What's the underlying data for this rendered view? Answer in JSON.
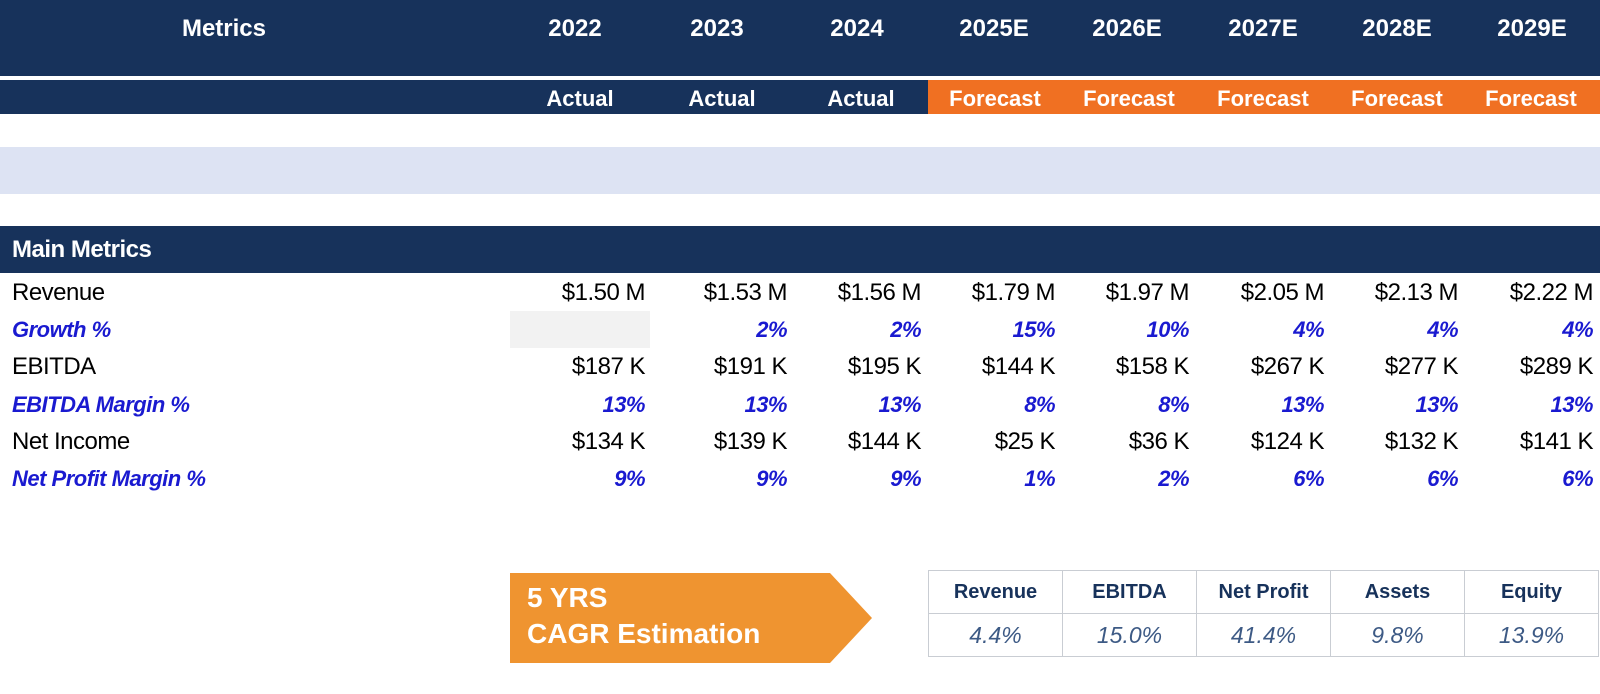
{
  "header": {
    "metrics_label": "Metrics",
    "years": [
      "2022",
      "2023",
      "2024",
      "2025E",
      "2026E",
      "2027E",
      "2028E",
      "2029E"
    ],
    "types": [
      "Actual",
      "Actual",
      "Actual",
      "Forecast",
      "Forecast",
      "Forecast",
      "Forecast",
      "Forecast"
    ]
  },
  "colors": {
    "navy": "#17325b",
    "forecast": "#f07022",
    "band": "#dde3f3",
    "percent_text": "#1a1ad0",
    "cagr_arrow": "#ef9430"
  },
  "section": {
    "title": "Main Metrics"
  },
  "rows": {
    "revenue": {
      "label": "Revenue",
      "values": [
        "$1.50 M",
        "$1.53 M",
        "$1.56 M",
        "$1.79 M",
        "$1.97 M",
        "$2.05 M",
        "$2.13 M",
        "$2.22 M"
      ]
    },
    "growth": {
      "label": "Growth %",
      "values": [
        "",
        "2%",
        "2%",
        "15%",
        "10%",
        "4%",
        "4%",
        "4%"
      ]
    },
    "ebitda": {
      "label": "EBITDA",
      "values": [
        "$187 K",
        "$191 K",
        "$195 K",
        "$144 K",
        "$158 K",
        "$267 K",
        "$277 K",
        "$289 K"
      ]
    },
    "ebitda_margin": {
      "label": "EBITDA Margin %",
      "values": [
        "13%",
        "13%",
        "13%",
        "8%",
        "8%",
        "13%",
        "13%",
        "13%"
      ]
    },
    "net_income": {
      "label": "Net Income",
      "values": [
        "$134 K",
        "$139 K",
        "$144 K",
        "$25 K",
        "$36 K",
        "$124 K",
        "$132 K",
        "$141 K"
      ]
    },
    "net_margin": {
      "label": "Net Profit Margin %",
      "values": [
        "9%",
        "9%",
        "9%",
        "1%",
        "2%",
        "6%",
        "6%",
        "6%"
      ]
    }
  },
  "cagr": {
    "line1": "5 YRS",
    "line2": "CAGR Estimation",
    "headers": [
      "Revenue",
      "EBITDA",
      "Net Profit",
      "Assets",
      "Equity"
    ],
    "values": [
      "4.4%",
      "15.0%",
      "41.4%",
      "9.8%",
      "13.9%"
    ]
  }
}
